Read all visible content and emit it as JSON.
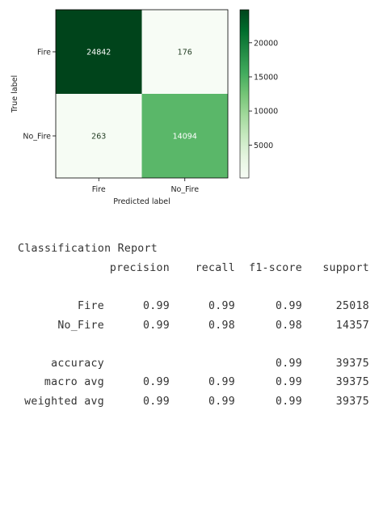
{
  "chart_data": {
    "type": "heatmap",
    "row_labels": [
      "Fire",
      "No_Fire"
    ],
    "col_labels": [
      "Fire",
      "No_Fire"
    ],
    "values": [
      [
        24842,
        176
      ],
      [
        263,
        14094
      ]
    ],
    "xlabel": "Predicted label",
    "ylabel": "True label",
    "colorbar": {
      "ticks": [
        5000,
        10000,
        15000,
        20000
      ],
      "range": [
        176,
        24842
      ],
      "colormap": "Greens"
    }
  },
  "report": {
    "title": "Classification Report",
    "header": [
      "",
      "precision",
      "recall",
      "f1-score",
      "support"
    ],
    "rows": [
      [
        "Fire",
        "0.99",
        "0.99",
        "0.99",
        "25018"
      ],
      [
        "No_Fire",
        "0.99",
        "0.98",
        "0.98",
        "14357"
      ]
    ],
    "summary_rows": [
      [
        "accuracy",
        "",
        "",
        "0.99",
        "39375"
      ],
      [
        "macro avg",
        "0.99",
        "0.99",
        "0.99",
        "39375"
      ],
      [
        "weighted avg",
        "0.99",
        "0.99",
        "0.99",
        "39375"
      ]
    ]
  }
}
